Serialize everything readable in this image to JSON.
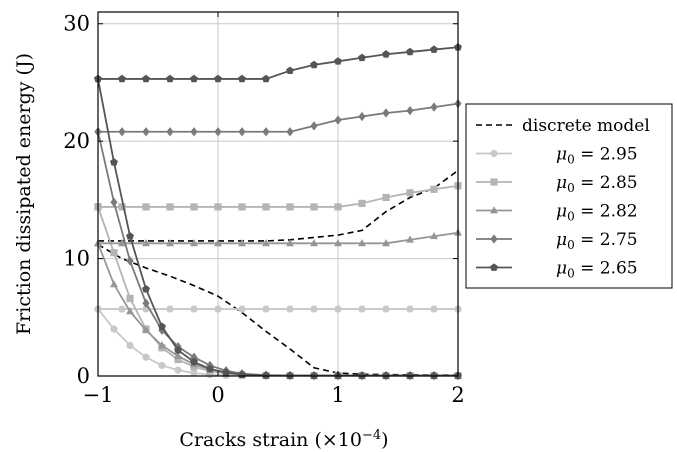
{
  "chart_data": {
    "type": "line",
    "title": "",
    "xlabel": "Cracks strain (×10",
    "xlabel_exponent": "−4",
    "xlabel_close": ")",
    "ylabel": "Friction dissipated energy (J)",
    "xlim": [
      -1,
      2
    ],
    "ylim": [
      0,
      31
    ],
    "x_ticks": [
      -1,
      0,
      1,
      2
    ],
    "y_ticks": [
      0,
      10,
      20,
      30
    ],
    "x_tick_labels": [
      "−1",
      "0",
      "1",
      "2"
    ],
    "y_tick_labels": [
      "0",
      "10",
      "20",
      "30"
    ],
    "grid": true,
    "legend_position": "right",
    "legend": [
      {
        "label": "discrete model",
        "prefix": "",
        "value": ""
      },
      {
        "label": "",
        "prefix": "μ",
        "sub": "0",
        "value": " = 2.95"
      },
      {
        "label": "",
        "prefix": "μ",
        "sub": "0",
        "value": " = 2.85"
      },
      {
        "label": "",
        "prefix": "μ",
        "sub": "0",
        "value": " = 2.82"
      },
      {
        "label": "",
        "prefix": "μ",
        "sub": "0",
        "value": " = 2.75"
      },
      {
        "label": "",
        "prefix": "μ",
        "sub": "0",
        "value": " = 2.65"
      }
    ],
    "series": [
      {
        "name": "discrete model",
        "style": "dashed",
        "color": "#000000",
        "marker": "none",
        "curves": [
          {
            "x": [
              -1,
              -0.8,
              -0.6,
              -0.4,
              -0.2,
              0,
              0.2,
              0.4,
              0.6,
              0.8,
              1.0,
              1.2,
              1.4,
              1.6,
              1.8,
              2.0
            ],
            "y": [
              11.5,
              11.5,
              11.5,
              11.5,
              11.5,
              11.5,
              11.5,
              11.5,
              11.6,
              11.8,
              12.0,
              12.4,
              14.0,
              15.2,
              16.0,
              17.5
            ]
          },
          {
            "x": [
              -1,
              -0.8,
              -0.6,
              -0.4,
              -0.2,
              0,
              0.2,
              0.4,
              0.6,
              0.8,
              1.0,
              1.2,
              1.4,
              1.6,
              1.8,
              2.0
            ],
            "y": [
              11.2,
              10.0,
              9.2,
              8.5,
              7.7,
              6.8,
              5.4,
              3.8,
              2.3,
              0.7,
              0.25,
              0.15,
              0.12,
              0.1,
              0.08,
              0.08
            ]
          }
        ]
      },
      {
        "name": "μ0 = 2.95",
        "style": "solid",
        "color": "#c8c8c8",
        "marker": "circle",
        "curves": [
          {
            "x": [
              -1,
              -0.8,
              -0.6,
              -0.4,
              -0.2,
              0,
              0.2,
              0.4,
              0.6,
              0.8,
              1.0,
              1.2,
              1.4,
              1.6,
              1.8,
              2.0
            ],
            "y": [
              5.7,
              5.7,
              5.7,
              5.7,
              5.7,
              5.7,
              5.7,
              5.7,
              5.7,
              5.7,
              5.7,
              5.7,
              5.7,
              5.7,
              5.7,
              5.7
            ]
          },
          {
            "x": [
              -1,
              -0.867,
              -0.733,
              -0.6,
              -0.467,
              -0.333,
              -0.2,
              -0.067,
              0.067,
              0.2,
              0.4,
              0.6,
              0.8,
              1.0,
              1.2,
              1.4,
              1.6,
              1.8,
              2.0
            ],
            "y": [
              5.7,
              4.0,
              2.6,
              1.6,
              0.9,
              0.5,
              0.25,
              0.12,
              0.05,
              0.03,
              0.02,
              0.02,
              0.02,
              0.02,
              0.02,
              0.02,
              0.02,
              0.02,
              0.02
            ]
          }
        ]
      },
      {
        "name": "μ0 = 2.85",
        "style": "solid",
        "color": "#b4b4b4",
        "marker": "square",
        "curves": [
          {
            "x": [
              -1,
              -0.8,
              -0.6,
              -0.4,
              -0.2,
              0,
              0.2,
              0.4,
              0.6,
              0.8,
              1.0,
              1.2,
              1.4,
              1.6,
              1.8,
              2.0
            ],
            "y": [
              14.4,
              14.4,
              14.4,
              14.4,
              14.4,
              14.4,
              14.4,
              14.4,
              14.4,
              14.4,
              14.4,
              14.7,
              15.2,
              15.6,
              15.9,
              16.2
            ]
          },
          {
            "x": [
              -1,
              -0.867,
              -0.733,
              -0.6,
              -0.467,
              -0.333,
              -0.2,
              -0.067,
              0.067,
              0.2,
              0.4,
              0.6,
              0.8,
              1.0,
              1.2,
              1.4,
              1.6,
              1.8,
              2.0
            ],
            "y": [
              14.4,
              10.5,
              6.6,
              4.0,
              2.4,
              1.4,
              0.8,
              0.4,
              0.2,
              0.08,
              0.04,
              0.03,
              0.03,
              0.03,
              0.03,
              0.03,
              0.03,
              0.03,
              0.03
            ]
          }
        ]
      },
      {
        "name": "μ0 = 2.82",
        "style": "solid",
        "color": "#969696",
        "marker": "triangle",
        "curves": [
          {
            "x": [
              -1,
              -0.8,
              -0.6,
              -0.4,
              -0.2,
              0,
              0.2,
              0.4,
              0.6,
              0.8,
              1.0,
              1.2,
              1.4,
              1.6,
              1.8,
              2.0
            ],
            "y": [
              11.3,
              11.3,
              11.3,
              11.3,
              11.3,
              11.3,
              11.3,
              11.3,
              11.3,
              11.3,
              11.3,
              11.3,
              11.3,
              11.6,
              11.9,
              12.2
            ]
          },
          {
            "x": [
              -1,
              -0.867,
              -0.733,
              -0.6,
              -0.467,
              -0.333,
              -0.2,
              -0.067,
              0.067,
              0.2,
              0.4,
              0.6,
              0.8,
              1.0,
              1.2,
              1.4,
              1.6,
              1.8,
              2.0
            ],
            "y": [
              11.3,
              7.8,
              5.5,
              3.9,
              2.6,
              1.7,
              1.0,
              0.55,
              0.3,
              0.15,
              0.06,
              0.04,
              0.03,
              0.03,
              0.03,
              0.03,
              0.03,
              0.03,
              0.03
            ]
          }
        ]
      },
      {
        "name": "μ0 = 2.75",
        "style": "solid",
        "color": "#7a7a7a",
        "marker": "diamond",
        "curves": [
          {
            "x": [
              -1,
              -0.8,
              -0.6,
              -0.4,
              -0.2,
              0,
              0.2,
              0.4,
              0.6,
              0.8,
              1.0,
              1.2,
              1.4,
              1.6,
              1.8,
              2.0
            ],
            "y": [
              20.8,
              20.8,
              20.8,
              20.8,
              20.8,
              20.8,
              20.8,
              20.8,
              20.8,
              21.3,
              21.8,
              22.1,
              22.4,
              22.6,
              22.9,
              23.2
            ]
          },
          {
            "x": [
              -1,
              -0.867,
              -0.733,
              -0.6,
              -0.467,
              -0.333,
              -0.2,
              -0.067,
              0.067,
              0.2,
              0.4,
              0.6,
              0.8,
              1.0,
              1.2,
              1.4,
              1.6,
              1.8,
              2.0
            ],
            "y": [
              20.8,
              14.8,
              9.8,
              6.2,
              3.9,
              2.5,
              1.6,
              0.9,
              0.45,
              0.2,
              0.07,
              0.04,
              0.03,
              0.03,
              0.03,
              0.03,
              0.03,
              0.03,
              0.03
            ]
          }
        ]
      },
      {
        "name": "μ0 = 2.65",
        "style": "solid",
        "color": "#555555",
        "marker": "pentagon",
        "curves": [
          {
            "x": [
              -1,
              -0.8,
              -0.6,
              -0.4,
              -0.2,
              0,
              0.2,
              0.4,
              0.6,
              0.8,
              1.0,
              1.2,
              1.4,
              1.6,
              1.8,
              2.0
            ],
            "y": [
              25.3,
              25.3,
              25.3,
              25.3,
              25.3,
              25.3,
              25.3,
              25.3,
              26.0,
              26.5,
              26.8,
              27.1,
              27.4,
              27.6,
              27.8,
              28.0
            ]
          },
          {
            "x": [
              -1,
              -0.867,
              -0.733,
              -0.6,
              -0.467,
              -0.333,
              -0.2,
              -0.067,
              0.067,
              0.2,
              0.4,
              0.6,
              0.8,
              1.0,
              1.2,
              1.4,
              1.6,
              1.8,
              2.0
            ],
            "y": [
              25.3,
              18.2,
              11.9,
              7.4,
              4.2,
              2.2,
              1.2,
              0.6,
              0.3,
              0.12,
              0.05,
              0.03,
              0.03,
              0.03,
              0.03,
              0.03,
              0.03,
              0.03,
              0.03
            ]
          }
        ]
      }
    ]
  }
}
